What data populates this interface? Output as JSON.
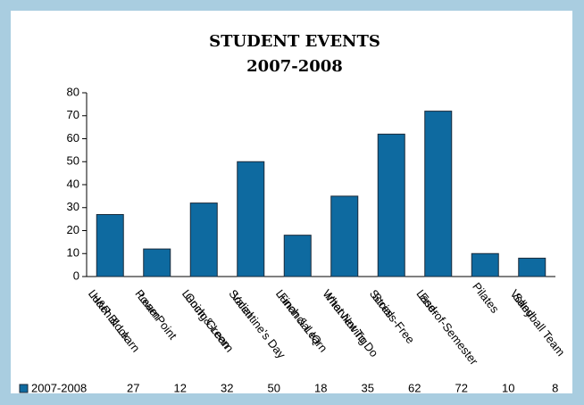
{
  "chart_data": {
    "type": "bar",
    "title": [
      "STUDENT EVENTS",
      "2007-2008"
    ],
    "categories": [
      [
        "H&R Block",
        "Lunch & Learn"
      ],
      [
        "Learn",
        "PowerPoint"
      ],
      [
        "Going Green",
        "Lunch & Learn"
      ],
      [
        "Valentine's Day",
        "Social"
      ],
      [
        "Financial IQ",
        "Lunch & Learn"
      ],
      [
        "Interviewing",
        "What Not To Do"
      ],
      [
        "Stress-Free",
        "Social"
      ],
      [
        "End-of-Semester",
        "Laser"
      ],
      [
        "Pilates"
      ],
      [
        "Sand",
        "Volleyball Team"
      ]
    ],
    "series": [
      {
        "name": "2007-2008",
        "color": "#0e6aa0",
        "values": [
          27,
          12,
          32,
          50,
          18,
          35,
          62,
          72,
          10,
          8
        ]
      }
    ],
    "ylim": [
      0,
      80
    ],
    "yticks": [
      0,
      10,
      20,
      30,
      40,
      50,
      60,
      70,
      80
    ],
    "grid": false
  }
}
